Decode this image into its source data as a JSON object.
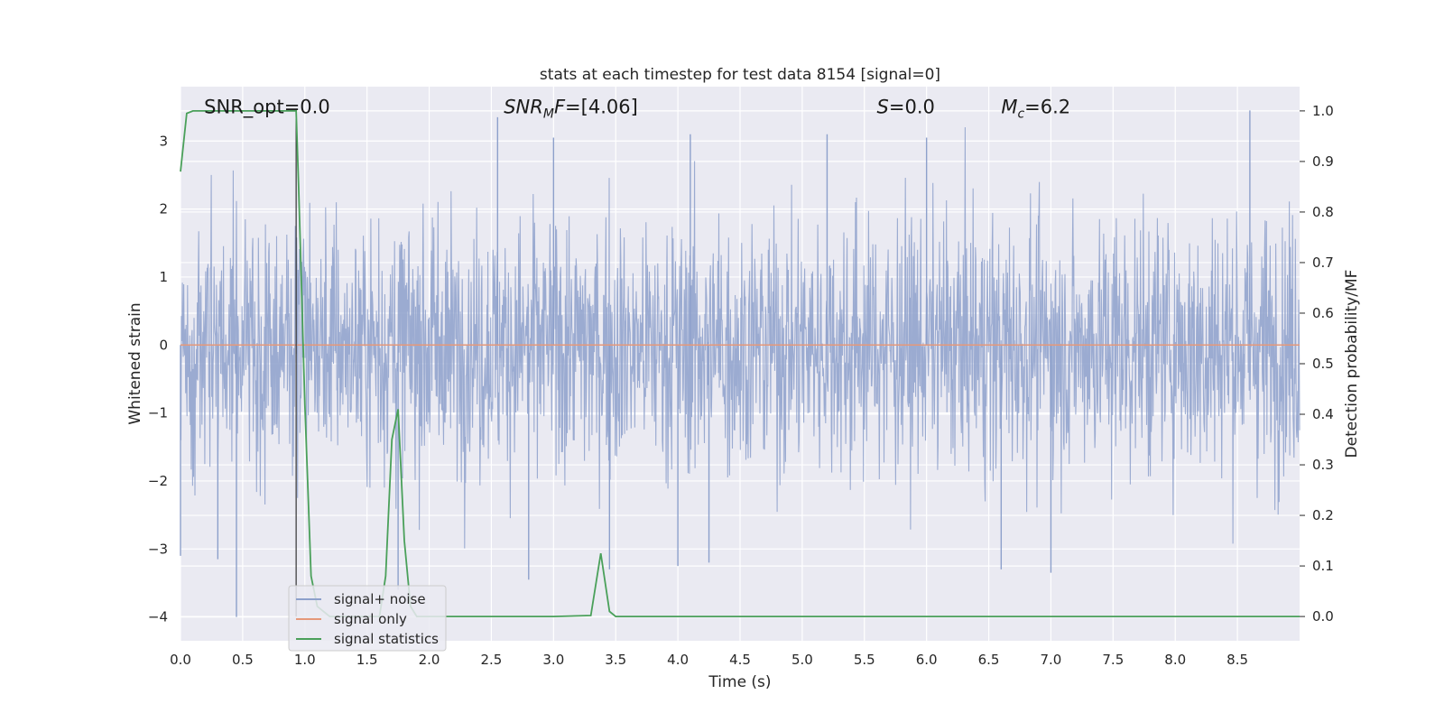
{
  "chart_data": {
    "type": "line",
    "title": "stats at each timestep for test data 8154 [signal=0]",
    "xlabel": "Time (s)",
    "ylabel": "Whitened strain",
    "y2label": "Detection probability/MF",
    "xlim": [
      0,
      9.0
    ],
    "ylim": [
      -4.35,
      3.8
    ],
    "y2lim": [
      -0.048,
      1.048
    ],
    "xticks": [
      0.0,
      0.5,
      1.0,
      1.5,
      2.0,
      2.5,
      3.0,
      3.5,
      4.0,
      4.5,
      5.0,
      5.5,
      6.0,
      6.5,
      7.0,
      7.5,
      8.0,
      8.5
    ],
    "xtick_labels": [
      "0.0",
      "0.5",
      "1.0",
      "1.5",
      "2.0",
      "2.5",
      "3.0",
      "3.5",
      "4.0",
      "4.5",
      "5.0",
      "5.5",
      "6.0",
      "6.5",
      "7.0",
      "7.5",
      "8.0",
      "8.5"
    ],
    "yticks": [
      -4,
      -3,
      -2,
      -1,
      0,
      1,
      2,
      3
    ],
    "ytick_labels": [
      "−4",
      "−3",
      "−2",
      "−1",
      "0",
      "1",
      "2",
      "3"
    ],
    "y2ticks": [
      0.0,
      0.1,
      0.2,
      0.3,
      0.4,
      0.5,
      0.6,
      0.7,
      0.8,
      0.9,
      1.0
    ],
    "y2tick_labels": [
      "0.0",
      "0.1",
      "0.2",
      "0.3",
      "0.4",
      "0.5",
      "0.6",
      "0.7",
      "0.8",
      "0.9",
      "1.0"
    ],
    "grid": true,
    "legend_position": "lower-left",
    "annotations": [
      {
        "id": "snr-opt",
        "text": "SNR_opt=0.0",
        "x": 0.19,
        "y": 3.5
      },
      {
        "id": "snr-mf",
        "text": "SNR_MF=[4.06]",
        "x": 2.6,
        "y": 3.5,
        "math": "snrmf"
      },
      {
        "id": "s",
        "text": "S=0.0",
        "x": 5.6,
        "y": 3.5,
        "math": "s"
      },
      {
        "id": "mc",
        "text": "M_c=6.2",
        "x": 6.6,
        "y": 3.5,
        "math": "mc"
      }
    ],
    "vline": {
      "x": 0.93
    },
    "series": [
      {
        "name": "signal+ noise",
        "color": "#8da0cb",
        "kind": "noise",
        "envelope_typical": 1.3,
        "y_min": -4.0,
        "y_max": 3.45,
        "peaks": [
          [
            0.45,
            -4.0
          ],
          [
            2.55,
            3.35
          ],
          [
            8.6,
            3.45
          ],
          [
            2.8,
            -3.45
          ],
          [
            7.0,
            -3.35
          ],
          [
            6.6,
            -3.3
          ],
          [
            0.3,
            -3.15
          ],
          [
            3.45,
            -3.3
          ],
          [
            4.0,
            -3.25
          ],
          [
            4.25,
            -3.2
          ],
          [
            3.0,
            3.05
          ],
          [
            4.1,
            3.1
          ],
          [
            5.2,
            3.1
          ],
          [
            6.0,
            3.05
          ],
          [
            0.0,
            -3.1
          ],
          [
            1.75,
            -3.6
          ]
        ]
      },
      {
        "name": "signal only",
        "color": "#e5987a",
        "x": [
          0.0,
          9.0
        ],
        "y": [
          0.0,
          0.0
        ]
      },
      {
        "name": "signal statistics",
        "color": "#4aa05a",
        "axis": "right",
        "x": [
          0.0,
          0.05,
          0.1,
          0.15,
          0.2,
          0.3,
          0.5,
          0.7,
          0.9,
          0.93,
          0.95,
          1.0,
          1.05,
          1.1,
          1.2,
          1.3,
          1.6,
          1.65,
          1.7,
          1.75,
          1.8,
          1.85,
          1.9,
          2.0,
          2.5,
          3.0,
          3.3,
          3.38,
          3.45,
          3.5,
          3.6,
          4.0,
          5.0,
          6.0,
          7.0,
          8.0,
          9.0
        ],
        "y": [
          0.88,
          0.995,
          1.0,
          1.0,
          1.0,
          1.0,
          1.0,
          1.0,
          1.0,
          1.0,
          0.85,
          0.42,
          0.08,
          0.02,
          0.0,
          0.0,
          0.0,
          0.08,
          0.35,
          0.41,
          0.15,
          0.02,
          0.0,
          0.0,
          0.0,
          0.0,
          0.002,
          0.125,
          0.01,
          0.0,
          0.0,
          0.0,
          0.0,
          0.0,
          0.0,
          0.0,
          0.0
        ]
      }
    ]
  }
}
